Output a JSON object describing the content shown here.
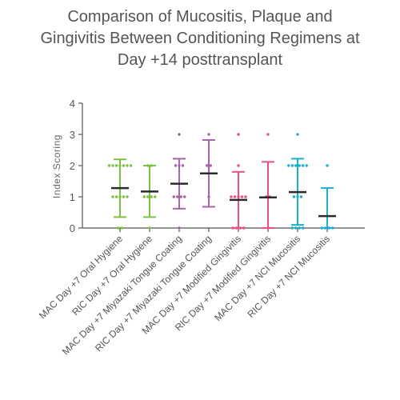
{
  "chart_data": {
    "type": "scatter",
    "title_lines": [
      "Comparison of Mucositis, Plaque and",
      "Gingivitis Between Conditioning Regimens at",
      "Day +14 posttransplant"
    ],
    "xlabel": "",
    "ylabel": "Index Scoring",
    "ylim": [
      0,
      4
    ],
    "yticks": [
      0,
      1,
      2,
      3,
      4
    ],
    "grid": false,
    "categories": [
      "MAC Day +7 Oral Hygiene",
      "RIC Day +7 Oral Hygiene",
      "MAC Day +7 Miyazaki Tongue Coating",
      "RIC Day +7 Miyazaki Tongue Coating",
      "MAC Day +7 Modified Gingivitis",
      "RIC Day +7 Modified Gingivitis",
      "MAC Day +7 NCI Mucositis",
      "RIC Day +7 NCI Mucositis"
    ],
    "groups": [
      {
        "color": "#7bc143",
        "mean": 1.28,
        "upper": 2.2,
        "lower": 0.35,
        "points": [
          2,
          2,
          2,
          2,
          2,
          2,
          2,
          1,
          1,
          1,
          1,
          1,
          0,
          0
        ]
      },
      {
        "color": "#7bc143",
        "mean": 1.17,
        "upper": 2.0,
        "lower": 0.35,
        "points": [
          2,
          2,
          1,
          1,
          1,
          1,
          0
        ]
      },
      {
        "color": "#a565a8",
        "mean": 1.42,
        "upper": 2.22,
        "lower": 0.62,
        "points": [
          3,
          2,
          2,
          2,
          1,
          1,
          1,
          1,
          0
        ]
      },
      {
        "color": "#a565a8",
        "mean": 1.75,
        "upper": 2.82,
        "lower": 0.68,
        "points": [
          3,
          2,
          2,
          1
        ]
      },
      {
        "color": "#ec4f86",
        "mean": 0.9,
        "upper": 1.8,
        "lower": 0.0,
        "points": [
          3,
          2,
          1,
          1,
          1,
          1,
          1,
          0,
          0,
          0,
          0
        ]
      },
      {
        "color": "#ec4f86",
        "mean": 0.98,
        "upper": 2.12,
        "lower": 0.0,
        "points": [
          3,
          1,
          1,
          0
        ]
      },
      {
        "color": "#1bafd0",
        "mean": 1.15,
        "upper": 2.22,
        "lower": 0.1,
        "points": [
          3,
          2,
          2,
          2,
          2,
          2,
          2,
          1,
          1,
          1,
          0,
          0,
          0,
          0
        ]
      },
      {
        "color": "#1bafd0",
        "mean": 0.38,
        "upper": 1.28,
        "lower": 0.0,
        "points": [
          2,
          0,
          0,
          0,
          0
        ]
      }
    ]
  }
}
